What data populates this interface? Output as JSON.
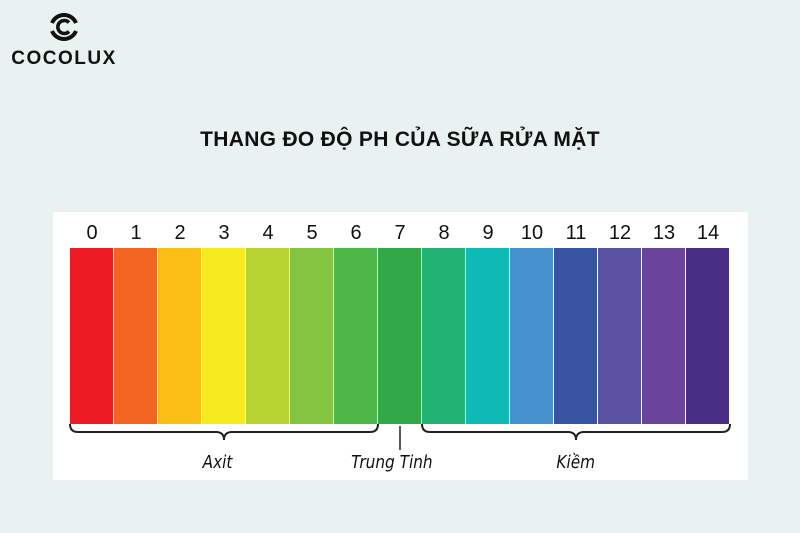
{
  "logo": {
    "text": "COCOLUX",
    "icon": "c-circle-logo"
  },
  "title": "THANG ĐO ĐỘ PH CỦA SỮA RỬA MẶT",
  "scale": [
    {
      "ph": "0",
      "color": "#ed1c24"
    },
    {
      "ph": "1",
      "color": "#f26522"
    },
    {
      "ph": "2",
      "color": "#fbbf16"
    },
    {
      "ph": "3",
      "color": "#f6eb20"
    },
    {
      "ph": "4",
      "color": "#b7d433"
    },
    {
      "ph": "5",
      "color": "#85c441"
    },
    {
      "ph": "6",
      "color": "#4db748"
    },
    {
      "ph": "7",
      "color": "#33a84b"
    },
    {
      "ph": "8",
      "color": "#22b374"
    },
    {
      "ph": "9",
      "color": "#0fb9b5"
    },
    {
      "ph": "10",
      "color": "#4690cd"
    },
    {
      "ph": "11",
      "color": "#3953a3"
    },
    {
      "ph": "12",
      "color": "#5a51a2"
    },
    {
      "ph": "13",
      "color": "#6a449a"
    },
    {
      "ph": "14",
      "color": "#472d83"
    }
  ],
  "labels": {
    "acid": "Axit",
    "neutral": "Trung Tinh",
    "alkaline": "Kiềm"
  }
}
